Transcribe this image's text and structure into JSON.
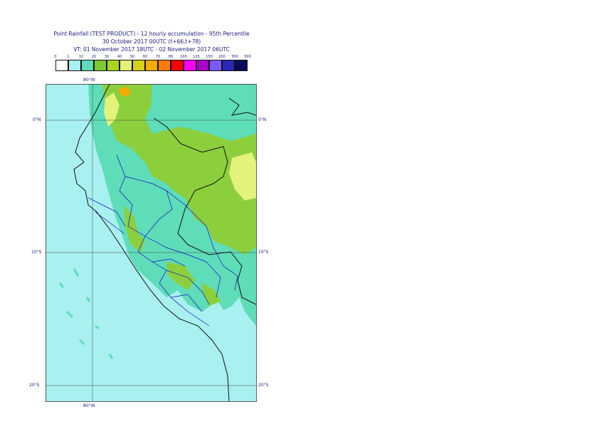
{
  "title": {
    "line1": "Point Rainfall (TEST PRODUCT) - 12 hourly accumulation - 95th Percentile",
    "line2": "30 October 2017 00UTC (t+66,t+78)",
    "line3": "VT: 01 November 2017 18UTC - 02 November 2017 06UTC"
  },
  "legend": {
    "ticks": [
      "0",
      "1",
      "10",
      "20",
      "30",
      "40",
      "50",
      "60",
      "70",
      "80",
      "100",
      "125",
      "150",
      "200",
      "300",
      "500"
    ],
    "colors": [
      "#ffffff",
      "#a9f0f0",
      "#5fdcb8",
      "#7ec832",
      "#a8d620",
      "#e2f27a",
      "#d6d21a",
      "#f5aa00",
      "#ff7c0a",
      "#ff0000",
      "#ff00ff",
      "#a800c8",
      "#7a5aff",
      "#2828b4",
      "#0a0a5a"
    ]
  },
  "axes": {
    "lon_top": "80°W",
    "lon_bottom": "80°W",
    "lat_left": [
      "0°N",
      "10°S",
      "20°S"
    ],
    "lat_right": [
      "0°N",
      "10°S",
      "20°S"
    ]
  },
  "map_colors": {
    "ocean": "#a9f0f0",
    "low": "#5fdcb8",
    "mid": "#8ccf3c",
    "high": "#e2f27a",
    "peak": "#f5aa00",
    "border": "#111111",
    "admin": "#1010cc"
  }
}
